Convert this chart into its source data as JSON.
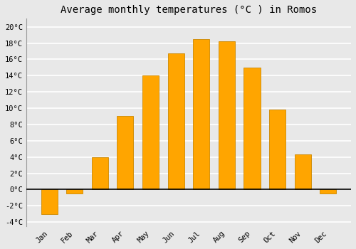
{
  "months": [
    "Jan",
    "Feb",
    "Mar",
    "Apr",
    "May",
    "Jun",
    "Jul",
    "Aug",
    "Sep",
    "Oct",
    "Nov",
    "Dec"
  ],
  "values": [
    -3.0,
    -0.5,
    4.0,
    9.0,
    14.0,
    16.7,
    18.5,
    18.2,
    15.0,
    9.8,
    4.3,
    -0.5
  ],
  "bar_color": "#FFA500",
  "bar_edge_color": "#CC8800",
  "bar_edge_width": 0.6,
  "title": "Average monthly temperatures (°C ) in Romos",
  "title_fontsize": 10,
  "ylim": [
    -4.5,
    21
  ],
  "yticks": [
    -4,
    -2,
    0,
    2,
    4,
    6,
    8,
    10,
    12,
    14,
    16,
    18,
    20
  ],
  "ytick_labels": [
    "-4°C",
    "-2°C",
    "0°C",
    "2°C",
    "4°C",
    "6°C",
    "8°C",
    "10°C",
    "12°C",
    "14°C",
    "16°C",
    "18°C",
    "20°C"
  ],
  "background_color": "#e8e8e8",
  "plot_area_color": "#e8e8e8",
  "grid_color": "#ffffff",
  "zero_line_color": "#000000",
  "tick_fontsize": 7.5,
  "xtick_fontsize": 7.5,
  "font_family": "monospace",
  "bar_width": 0.65
}
